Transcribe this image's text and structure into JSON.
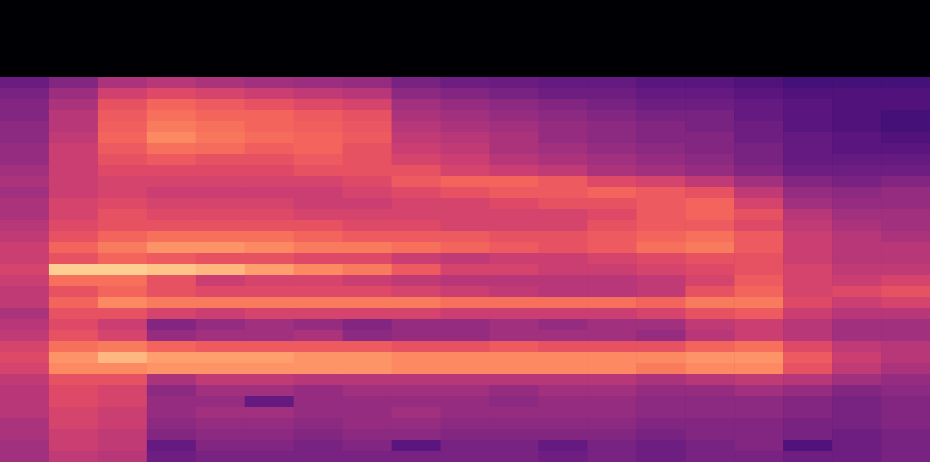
{
  "chart_data": {
    "type": "heatmap",
    "color": "magma",
    "tick_labels": false,
    "zlim": [
      -80,
      0
    ],
    "values": [
      [
        -80,
        -80,
        -80,
        -80,
        -80,
        -80,
        -80,
        -80,
        -80,
        -80,
        -80,
        -80,
        -80,
        -80,
        -80,
        -80,
        -80,
        -80,
        -80
      ],
      [
        -80,
        -80,
        -80,
        -80,
        -80,
        -80,
        -80,
        -80,
        -80,
        -80,
        -80,
        -80,
        -80,
        -80,
        -80,
        -80,
        -80,
        -80,
        -80
      ],
      [
        -80,
        -80,
        -80,
        -80,
        -80,
        -80,
        -80,
        -80,
        -80,
        -80,
        -80,
        -80,
        -80,
        -80,
        -80,
        -80,
        -80,
        -80,
        -80
      ],
      [
        -80,
        -80,
        -80,
        -80,
        -80,
        -80,
        -80,
        -80,
        -80,
        -80,
        -80,
        -80,
        -80,
        -80,
        -80,
        -80,
        -80,
        -80,
        -80
      ],
      [
        -80,
        -80,
        -80,
        -80,
        -80,
        -80,
        -80,
        -80,
        -80,
        -80,
        -80,
        -80,
        -80,
        -80,
        -80,
        -80,
        -80,
        -80,
        -80
      ],
      [
        -80,
        -80,
        -80,
        -80,
        -80,
        -80,
        -80,
        -80,
        -80,
        -80,
        -80,
        -80,
        -80,
        -80,
        -80,
        -80,
        -80,
        -80,
        -80
      ],
      [
        -80,
        -80,
        -80,
        -80,
        -80,
        -80,
        -80,
        -80,
        -80,
        -80,
        -80,
        -80,
        -80,
        -80,
        -80,
        -80,
        -80,
        -80,
        -80
      ],
      [
        -55,
        -50,
        -42,
        -40,
        -42,
        -44,
        -45,
        -46,
        -52,
        -54,
        -55,
        -56,
        -56,
        -58,
        -58,
        -60,
        -62,
        -62,
        -62
      ],
      [
        -52,
        -45,
        -35,
        -32,
        -34,
        -36,
        -38,
        -40,
        -48,
        -50,
        -52,
        -54,
        -54,
        -56,
        -56,
        -58,
        -60,
        -60,
        -60
      ],
      [
        -50,
        -42,
        -30,
        -26,
        -28,
        -30,
        -32,
        -34,
        -44,
        -46,
        -48,
        -50,
        -52,
        -54,
        -54,
        -56,
        -58,
        -60,
        -60
      ],
      [
        -50,
        -40,
        -28,
        -24,
        -26,
        -26,
        -28,
        -30,
        -42,
        -44,
        -46,
        -48,
        -50,
        -52,
        -52,
        -56,
        -58,
        -60,
        -62
      ],
      [
        -48,
        -40,
        -27,
        -22,
        -24,
        -26,
        -27,
        -29,
        -40,
        -42,
        -44,
        -46,
        -48,
        -50,
        -52,
        -54,
        -58,
        -60,
        -62
      ],
      [
        -48,
        -38,
        -26,
        -20,
        -23,
        -25,
        -26,
        -28,
        -38,
        -40,
        -42,
        -46,
        -48,
        -50,
        -50,
        -54,
        -56,
        -58,
        -60
      ],
      [
        -46,
        -36,
        -28,
        -24,
        -25,
        -27,
        -26,
        -30,
        -36,
        -38,
        -42,
        -44,
        -46,
        -48,
        -50,
        -52,
        -56,
        -58,
        -58
      ],
      [
        -46,
        -36,
        -30,
        -28,
        -30,
        -30,
        -28,
        -30,
        -34,
        -36,
        -40,
        -42,
        -44,
        -46,
        -48,
        -52,
        -56,
        -56,
        -56
      ],
      [
        -44,
        -36,
        -32,
        -32,
        -32,
        -32,
        -30,
        -30,
        -30,
        -34,
        -36,
        -38,
        -42,
        -44,
        -46,
        -50,
        -54,
        -54,
        -54
      ],
      [
        -42,
        -36,
        -34,
        -34,
        -34,
        -34,
        -34,
        -32,
        -28,
        -26,
        -26,
        -28,
        -32,
        -34,
        -38,
        -44,
        -50,
        -52,
        -50
      ],
      [
        -44,
        -36,
        -34,
        -36,
        -36,
        -36,
        -36,
        -34,
        -32,
        -30,
        -28,
        -28,
        -26,
        -28,
        -30,
        -38,
        -46,
        -48,
        -46
      ],
      [
        -42,
        -34,
        -32,
        -34,
        -34,
        -34,
        -36,
        -36,
        -34,
        -34,
        -32,
        -30,
        -30,
        -28,
        -26,
        -34,
        -44,
        -46,
        -46
      ],
      [
        -42,
        -34,
        -30,
        -32,
        -32,
        -32,
        -34,
        -34,
        -34,
        -34,
        -34,
        -34,
        -32,
        -28,
        -26,
        -30,
        -40,
        -44,
        -44
      ],
      [
        -40,
        -32,
        -30,
        -30,
        -30,
        -30,
        -30,
        -32,
        -32,
        -34,
        -34,
        -34,
        -30,
        -28,
        -28,
        -32,
        -38,
        -42,
        -44
      ],
      [
        -38,
        -30,
        -26,
        -24,
        -24,
        -24,
        -26,
        -28,
        -28,
        -28,
        -30,
        -30,
        -28,
        -26,
        -24,
        -28,
        -36,
        -40,
        -42
      ],
      [
        -36,
        -26,
        -22,
        -18,
        -18,
        -20,
        -22,
        -22,
        -24,
        -26,
        -28,
        -30,
        -28,
        -24,
        -22,
        -28,
        -36,
        -40,
        -40
      ],
      [
        -36,
        -30,
        -26,
        -28,
        -30,
        -30,
        -32,
        -32,
        -36,
        -38,
        -36,
        -36,
        -34,
        -32,
        -30,
        -30,
        -36,
        -40,
        -40
      ],
      [
        -34,
        -8,
        -8,
        -10,
        -12,
        -16,
        -20,
        -22,
        -28,
        -34,
        -34,
        -36,
        -36,
        -34,
        -32,
        -30,
        -34,
        -38,
        -38
      ],
      [
        -36,
        -24,
        -24,
        -30,
        -36,
        -34,
        -34,
        -36,
        -38,
        -40,
        -40,
        -40,
        -40,
        -38,
        -34,
        -28,
        -34,
        -36,
        -34
      ],
      [
        -38,
        -30,
        -26,
        -30,
        -32,
        -32,
        -32,
        -32,
        -34,
        -36,
        -38,
        -40,
        -40,
        -38,
        -30,
        -26,
        -34,
        -32,
        -30
      ],
      [
        -38,
        -26,
        -20,
        -22,
        -22,
        -22,
        -22,
        -22,
        -22,
        -24,
        -24,
        -24,
        -24,
        -26,
        -22,
        -22,
        -32,
        -36,
        -34
      ],
      [
        -42,
        -30,
        -30,
        -34,
        -36,
        -34,
        -34,
        -34,
        -34,
        -36,
        -36,
        -36,
        -36,
        -34,
        -30,
        -28,
        -36,
        -40,
        -40
      ],
      [
        -40,
        -32,
        -36,
        -50,
        -46,
        -44,
        -46,
        -50,
        -46,
        -46,
        -44,
        -46,
        -44,
        -44,
        -38,
        -36,
        -40,
        -44,
        -44
      ],
      [
        -38,
        -30,
        -34,
        -46,
        -44,
        -44,
        -42,
        -48,
        -46,
        -46,
        -44,
        -44,
        -44,
        -46,
        -40,
        -36,
        -40,
        -44,
        -44
      ],
      [
        -34,
        -24,
        -22,
        -26,
        -28,
        -28,
        -28,
        -28,
        -30,
        -30,
        -28,
        -30,
        -30,
        -30,
        -26,
        -24,
        -32,
        -38,
        -40
      ],
      [
        -32,
        -18,
        -12,
        -16,
        -16,
        -16,
        -18,
        -18,
        -20,
        -20,
        -20,
        -20,
        -20,
        -20,
        -18,
        -18,
        -28,
        -36,
        -40
      ],
      [
        -34,
        -20,
        -20,
        -18,
        -18,
        -18,
        -18,
        -18,
        -20,
        -20,
        -20,
        -20,
        -20,
        -22,
        -20,
        -20,
        -30,
        -38,
        -42
      ],
      [
        -38,
        -30,
        -30,
        -42,
        -38,
        -38,
        -40,
        -40,
        -40,
        -40,
        -40,
        -40,
        -40,
        -42,
        -40,
        -38,
        -40,
        -44,
        -46
      ],
      [
        -40,
        -32,
        -34,
        -48,
        -44,
        -44,
        -46,
        -44,
        -44,
        -44,
        -46,
        -44,
        -44,
        -46,
        -46,
        -44,
        -46,
        -50,
        -48
      ],
      [
        -40,
        -32,
        -34,
        -46,
        -46,
        -56,
        -46,
        -46,
        -46,
        -46,
        -48,
        -46,
        -46,
        -48,
        -48,
        -48,
        -50,
        -52,
        -50
      ],
      [
        -40,
        -34,
        -36,
        -46,
        -44,
        -44,
        -46,
        -46,
        -44,
        -46,
        -46,
        -46,
        -46,
        -48,
        -48,
        -48,
        -50,
        -52,
        -50
      ],
      [
        -42,
        -34,
        -36,
        -48,
        -46,
        -46,
        -48,
        -46,
        -46,
        -48,
        -48,
        -48,
        -48,
        -50,
        -50,
        -50,
        -52,
        -52,
        -50
      ],
      [
        -42,
        -36,
        -38,
        -50,
        -48,
        -48,
        -50,
        -48,
        -48,
        -50,
        -50,
        -50,
        -50,
        -52,
        -50,
        -50,
        -52,
        -54,
        -52
      ],
      [
        -44,
        -36,
        -38,
        -56,
        -50,
        -50,
        -52,
        -50,
        -58,
        -52,
        -52,
        -56,
        -52,
        -54,
        -52,
        -50,
        -60,
        -54,
        -52
      ],
      [
        -44,
        -38,
        -40,
        -54,
        -52,
        -52,
        -52,
        -52,
        -52,
        -52,
        -52,
        -54,
        -52,
        -54,
        -52,
        -52,
        -54,
        -54,
        -52
      ]
    ]
  }
}
